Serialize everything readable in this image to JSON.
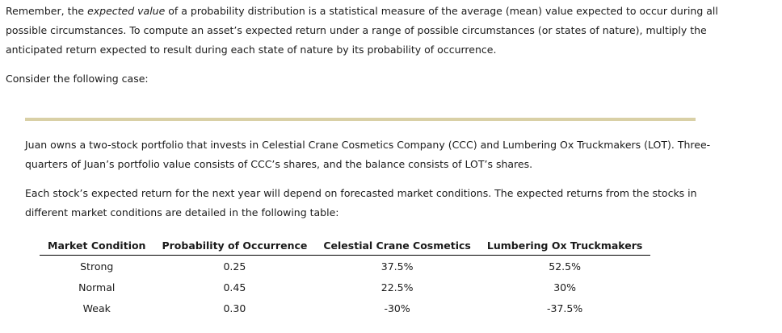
{
  "intro": {
    "p1_before": "Remember, the ",
    "p1_em": "expected value",
    "p1_after": " of a probability distribution is a statistical measure of the average (mean) value expected to occur during all possible circumstances. To compute an asset’s expected return under a range of possible circumstances (or states of nature), multiply the anticipated return expected to result during each state of nature by its probability of occurrence."
  },
  "consider": "Consider the following case:",
  "case": {
    "p1": "Juan owns a two-stock portfolio that invests in Celestial Crane Cosmetics Company (CCC) and Lumbering Ox Truckmakers (LOT). Three-quarters of Juan’s portfolio value consists of CCC’s shares, and the balance consists of LOT’s shares.",
    "p2": "Each stock’s expected return for the next year will depend on forecasted market conditions. The expected returns from the stocks in different market conditions are detailed in the following table:"
  },
  "table": {
    "headers": [
      "Market Condition",
      "Probability of Occurrence",
      "Celestial Crane Cosmetics",
      "Lumbering Ox Truckmakers"
    ],
    "rows": [
      [
        "Strong",
        "0.25",
        "37.5%",
        "52.5%"
      ],
      [
        "Normal",
        "0.45",
        "22.5%",
        "30%"
      ],
      [
        "Weak",
        "0.30",
        "-30%",
        "-37.5%"
      ]
    ]
  },
  "colors": {
    "rule": "#d9d0a6",
    "text": "#1a1a1a"
  }
}
